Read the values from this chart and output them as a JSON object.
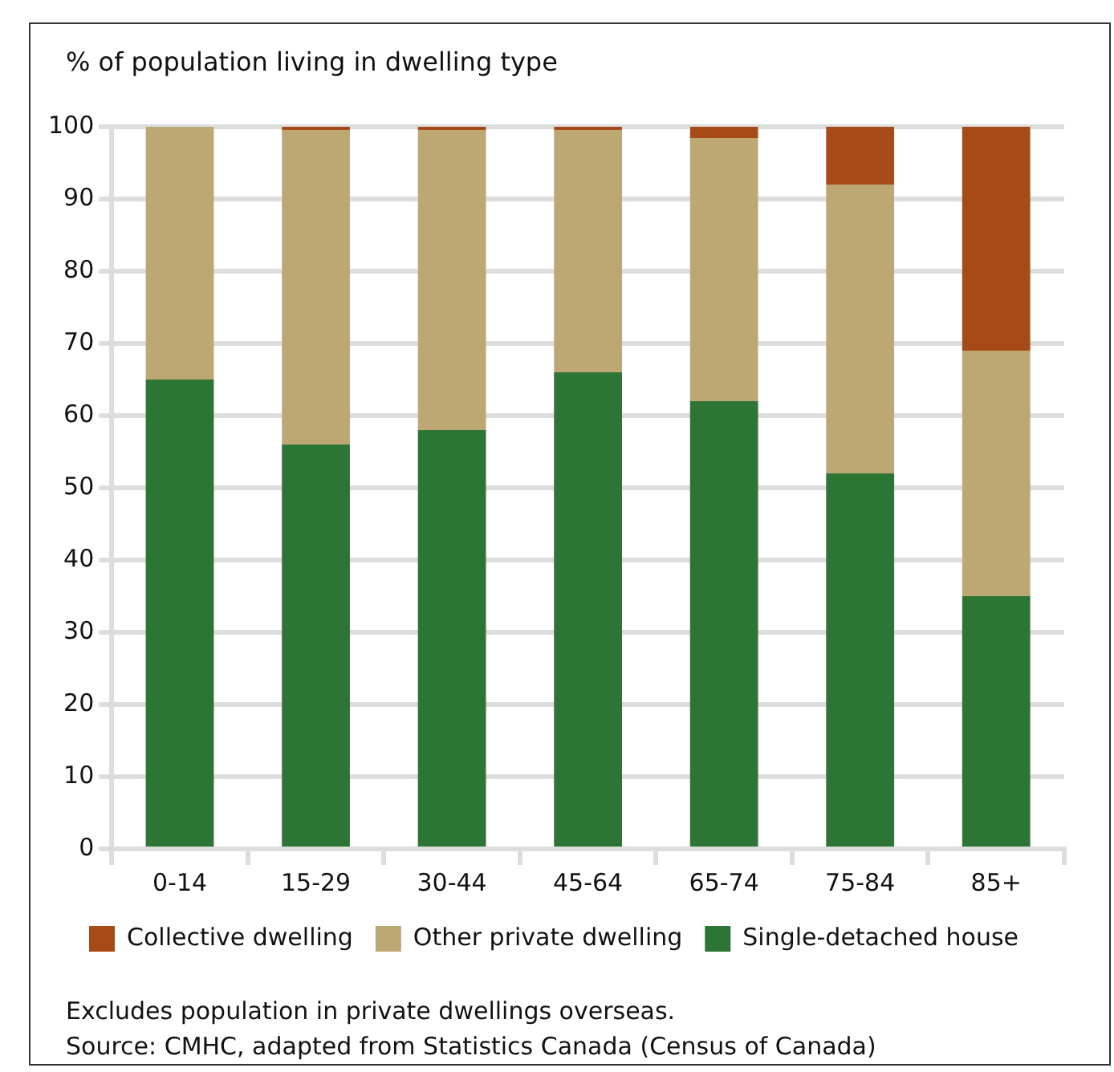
{
  "chart_data": {
    "type": "bar",
    "stacked": true,
    "ylabel": "% of population living in dwelling type",
    "categories": [
      "0-14",
      "15-29",
      "30-44",
      "45-64",
      "65-74",
      "75-84",
      "85+"
    ],
    "series": [
      {
        "name": "Single-detached house",
        "color": "#2d7535",
        "values": [
          65,
          56,
          58,
          66,
          62,
          52,
          35
        ]
      },
      {
        "name": "Other private dwelling",
        "color": "#bda874",
        "values": [
          35,
          43.5,
          41.5,
          33.5,
          36.4,
          40,
          34
        ]
      },
      {
        "name": "Collective dwelling",
        "color": "#a64b17",
        "values": [
          0.3,
          0.5,
          0.5,
          0.5,
          1.6,
          8,
          31
        ]
      }
    ],
    "ylim": [
      0,
      100
    ],
    "yticks": [
      0,
      10,
      20,
      30,
      40,
      50,
      60,
      70,
      80,
      90,
      100
    ],
    "grid": "y",
    "legend": "bottom",
    "annotations": [
      "Excludes population in private dwellings overseas.",
      "Source: CMHC, adapted from Statistics Canada (Census of Canada)"
    ]
  }
}
